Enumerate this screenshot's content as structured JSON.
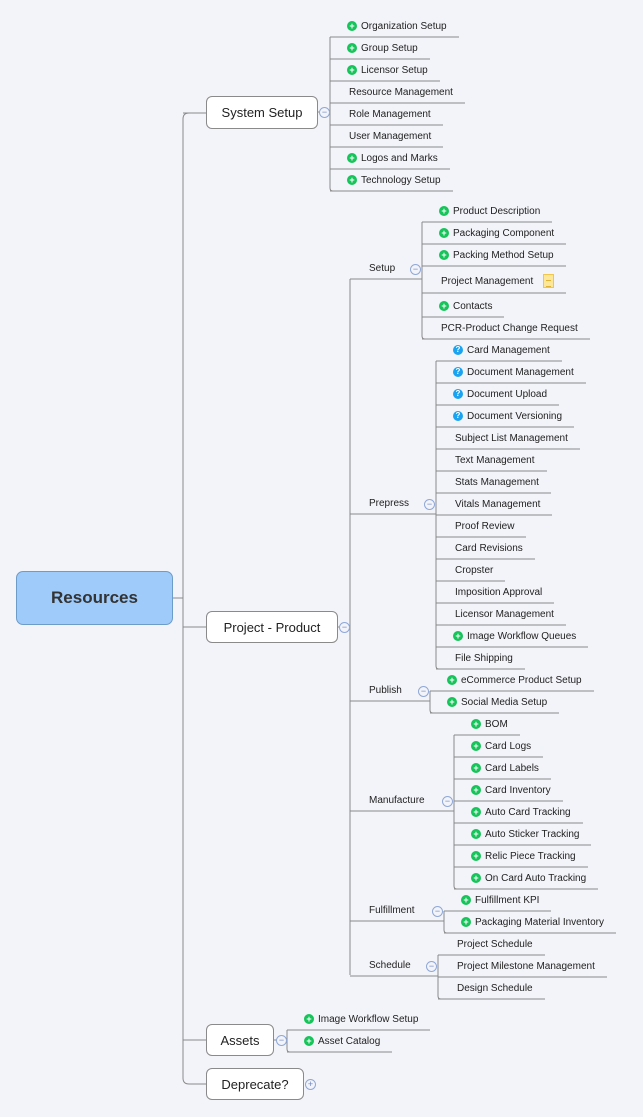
{
  "root": "Resources",
  "colors": {
    "root_fill": "#9ecbfa",
    "plus_icon": "#16c45a",
    "question_icon": "#1aa3f0",
    "line": "#8a8a8a"
  },
  "branches": [
    {
      "label": "System Setup",
      "items": [
        {
          "t": "Organization Setup",
          "icon": "plus"
        },
        {
          "t": "Group Setup",
          "icon": "plus"
        },
        {
          "t": "Licensor Setup",
          "icon": "plus"
        },
        {
          "t": "Resource Management"
        },
        {
          "t": "Role Management"
        },
        {
          "t": "User Management"
        },
        {
          "t": "Logos and Marks",
          "icon": "plus"
        },
        {
          "t": "Technology Setup",
          "icon": "plus"
        }
      ]
    },
    {
      "label": "Project - Product",
      "subs": [
        {
          "label": "Setup",
          "items": [
            {
              "t": "Product Description",
              "icon": "plus"
            },
            {
              "t": "Packaging Component",
              "icon": "plus"
            },
            {
              "t": "Packing Method Setup",
              "icon": "plus"
            },
            {
              "t": "Project Management",
              "note": true
            },
            {
              "t": "Contacts",
              "icon": "plus"
            },
            {
              "t": "PCR-Product Change Request"
            }
          ]
        },
        {
          "label": "Prepress",
          "items": [
            {
              "t": "Card Management",
              "icon": "q"
            },
            {
              "t": "Document Management",
              "icon": "q"
            },
            {
              "t": "Document Upload",
              "icon": "q"
            },
            {
              "t": "Document Versioning",
              "icon": "q"
            },
            {
              "t": "Subject List Management"
            },
            {
              "t": "Text Management"
            },
            {
              "t": "Stats Management"
            },
            {
              "t": "Vitals Management"
            },
            {
              "t": "Proof Review"
            },
            {
              "t": "Card Revisions"
            },
            {
              "t": "Cropster"
            },
            {
              "t": "Imposition Approval"
            },
            {
              "t": "Licensor Management"
            },
            {
              "t": "Image Workflow Queues",
              "icon": "plus"
            },
            {
              "t": "File Shipping"
            }
          ]
        },
        {
          "label": "Publish",
          "items": [
            {
              "t": "eCommerce Product Setup",
              "icon": "plus"
            },
            {
              "t": "Social Media Setup",
              "icon": "plus"
            }
          ]
        },
        {
          "label": "Manufacture",
          "items": [
            {
              "t": "BOM",
              "icon": "plus"
            },
            {
              "t": "Card Logs",
              "icon": "plus"
            },
            {
              "t": "Card Labels",
              "icon": "plus"
            },
            {
              "t": "Card Inventory",
              "icon": "plus"
            },
            {
              "t": "Auto Card Tracking",
              "icon": "plus"
            },
            {
              "t": "Auto Sticker Tracking",
              "icon": "plus"
            },
            {
              "t": "Relic Piece Tracking",
              "icon": "plus"
            },
            {
              "t": "On Card Auto Tracking",
              "icon": "plus"
            }
          ]
        },
        {
          "label": "Fulfillment",
          "items": [
            {
              "t": "Fulfillment KPI",
              "icon": "plus"
            },
            {
              "t": "Packaging Material Inventory",
              "icon": "plus"
            }
          ]
        },
        {
          "label": "Schedule",
          "items": [
            {
              "t": "Project Schedule"
            },
            {
              "t": "Project Milestone Management"
            },
            {
              "t": "Design Schedule"
            }
          ]
        }
      ]
    },
    {
      "label": "Assets",
      "items": [
        {
          "t": "Image Workflow Setup",
          "icon": "plus"
        },
        {
          "t": "Asset Catalog",
          "icon": "plus"
        }
      ]
    },
    {
      "label": "Deprecate?",
      "collapsed": true
    }
  ]
}
